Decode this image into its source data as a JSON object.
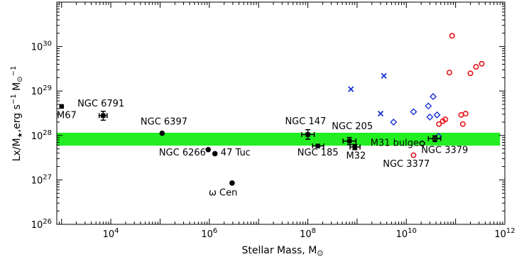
{
  "chart_data": {
    "type": "scatter",
    "title": "",
    "xlabel": "Stellar Mass, M",
    "xlabel_sub": "⊙",
    "ylabel_parts": {
      "lead": "Lx/M",
      "star": "★",
      "mid": ",erg s",
      "exp1": "−1",
      "mid2": " M",
      "sun": "⊙",
      "exp2": "−1"
    },
    "x_scale": "log",
    "y_scale": "log",
    "xlim": [
      800,
      1000000000000.0
    ],
    "ylim": [
      1e+26,
      1e+31
    ],
    "grid": false,
    "x_ticks": [
      {
        "value": 10000.0,
        "base": "10",
        "exp": "4"
      },
      {
        "value": 1000000.0,
        "base": "10",
        "exp": "6"
      },
      {
        "value": 100000000.0,
        "base": "10",
        "exp": "8"
      },
      {
        "value": 10000000000.0,
        "base": "10",
        "exp": "10"
      },
      {
        "value": 1000000000000.0,
        "base": "10",
        "exp": "12"
      }
    ],
    "y_ticks": [
      {
        "value": 1e+26,
        "base": "10",
        "exp": "26"
      },
      {
        "value": 1e+27,
        "base": "10",
        "exp": "27"
      },
      {
        "value": 1e+28,
        "base": "10",
        "exp": "28"
      },
      {
        "value": 1e+29,
        "base": "10",
        "exp": "29"
      },
      {
        "value": 1e+30,
        "base": "10",
        "exp": "30"
      }
    ],
    "band": {
      "x": [
        800,
        800000000000.0
      ],
      "y": [
        5.9e+27,
        1.15e+28
      ],
      "color": "#22ee22"
    },
    "colors": {
      "black": "#000000",
      "red": "#e8151b",
      "blue": "#1a2fd6",
      "red_label": "#e8151b"
    },
    "labeled_points": [
      {
        "id": "m67",
        "label": "M67",
        "x": 1000,
        "y": 4.5e+28,
        "marker": "square",
        "label_x": 800,
        "label_y": 2.45e+28,
        "anchor": "start"
      },
      {
        "id": "ngc6791",
        "label": "NGC 6791",
        "x": 7000,
        "y": 2.8e+28,
        "marker": "square",
        "xerr": [
          5800,
          8400
        ],
        "yerr": [
          2.2e+28,
          3.5e+28
        ],
        "label_x": 2100,
        "label_y": 4.5e+28,
        "anchor": "start"
      },
      {
        "id": "ngc6397",
        "label": "NGC 6397",
        "x": 110000.0,
        "y": 1.12e+28,
        "marker": "circle",
        "label_x": 120000.0,
        "label_y": 1.75e+28,
        "anchor": "middle"
      },
      {
        "id": "ngc6266",
        "label": "NGC 6266",
        "x": 950000.0,
        "y": 4.8e+27,
        "marker": "circle",
        "label_x": 850000.0,
        "label_y": 3.55e+27,
        "anchor": "end"
      },
      {
        "id": "47tuc",
        "label": "47 Tuc",
        "x": 1300000.0,
        "y": 3.9e+27,
        "marker": "circle",
        "label_x": 1700000.0,
        "label_y": 3.55e+27,
        "anchor": "start"
      },
      {
        "id": "omegacen",
        "label": "ω Cen",
        "x": 2900000.0,
        "y": 8.5e+26,
        "marker": "circle",
        "label_x": 1900000.0,
        "label_y": 4.4e+26,
        "anchor": "middle"
      },
      {
        "id": "ngc147",
        "label": "NGC 147",
        "x": 100000000.0,
        "y": 1.05e+28,
        "marker": "square",
        "xerr": [
          75000000.0,
          135000000.0
        ],
        "yerr": [
          8.2e+27,
          1.35e+28
        ],
        "label_x": 90000000.0,
        "label_y": 1.8e+28,
        "anchor": "middle"
      },
      {
        "id": "ngc185",
        "label": "NGC 185",
        "x": 160000000.0,
        "y": 5.8e+27,
        "marker": "square",
        "xerr": [
          125000000.0,
          210000000.0
        ],
        "label_x": 160000000.0,
        "label_y": 3.55e+27,
        "anchor": "middle"
      },
      {
        "id": "ngc205",
        "label": "NGC 205",
        "x": 700000000.0,
        "y": 7.5e+27,
        "marker": "square",
        "xerr": [
          520000000.0,
          950000000.0
        ],
        "yerr": [
          6.2e+27,
          9e+27
        ],
        "label_x": 800000000.0,
        "label_y": 1.38e+28,
        "anchor": "middle"
      },
      {
        "id": "m32",
        "label": "M32",
        "x": 900000000.0,
        "y": 5.5e+27,
        "marker": "square",
        "xerr": [
          720000000.0,
          1150000000.0
        ],
        "yerr": [
          4.8e+27,
          6.3e+27
        ],
        "label_x": 950000000.0,
        "label_y": 3e+27,
        "anchor": "middle"
      },
      {
        "id": "m31bulge",
        "label": "M31 bulge",
        "x": 21000000000.0,
        "y": 6.6e+27,
        "marker": "open-circle",
        "label_x": 18000000000.0,
        "label_y": 5.8e+27,
        "anchor": "end"
      },
      {
        "id": "ngc3379",
        "label": "NGC 3379",
        "x": 38000000000.0,
        "y": 8.5e+27,
        "marker": "open-circle",
        "xerr": [
          28000000000.0,
          50000000000.0
        ],
        "yerr": [
          7.3e+27,
          9.8e+27
        ],
        "label_x": 60000000000.0,
        "label_y": 4e+27,
        "anchor": "middle"
      },
      {
        "id": "ngc3377",
        "label": "NGC 3377",
        "x": 14000000000.0,
        "y": 3.6e+27,
        "marker": "open-circle-red",
        "label_x": 10000000000.0,
        "label_y": 1.95e+27,
        "anchor": "middle",
        "label_color": "red"
      }
    ],
    "series": [
      {
        "marker": "open-circle",
        "color": "red",
        "points": [
          {
            "x": 85000000000.0,
            "y": 1.75e+30
          },
          {
            "x": 75000000000.0,
            "y": 2.6e+29
          },
          {
            "x": 200000000000.0,
            "y": 2.5e+29
          },
          {
            "x": 260000000000.0,
            "y": 3.5e+29
          },
          {
            "x": 340000000000.0,
            "y": 4.1e+29
          },
          {
            "x": 62000000000.0,
            "y": 2.3e+28
          },
          {
            "x": 55000000000.0,
            "y": 2.1e+28
          },
          {
            "x": 46000000000.0,
            "y": 1.8e+28
          },
          {
            "x": 130000000000.0,
            "y": 2.9e+28
          },
          {
            "x": 160000000000.0,
            "y": 3.1e+28
          },
          {
            "x": 140000000000.0,
            "y": 1.8e+28
          }
        ]
      },
      {
        "marker": "x",
        "color": "blue",
        "points": [
          {
            "x": 3500000000.0,
            "y": 2.2e+29
          },
          {
            "x": 750000000.0,
            "y": 1.1e+29
          },
          {
            "x": 3000000000.0,
            "y": 3.1e+28
          }
        ]
      },
      {
        "marker": "diamond",
        "color": "blue",
        "points": [
          {
            "x": 5500000000.0,
            "y": 2e+28
          },
          {
            "x": 14000000000.0,
            "y": 3.4e+28
          },
          {
            "x": 28000000000.0,
            "y": 4.6e+28
          },
          {
            "x": 35000000000.0,
            "y": 7.5e+28
          },
          {
            "x": 30000000000.0,
            "y": 2.6e+28
          },
          {
            "x": 42000000000.0,
            "y": 2.9e+28
          },
          {
            "x": 45000000000.0,
            "y": 9.6e+27
          }
        ]
      }
    ]
  }
}
